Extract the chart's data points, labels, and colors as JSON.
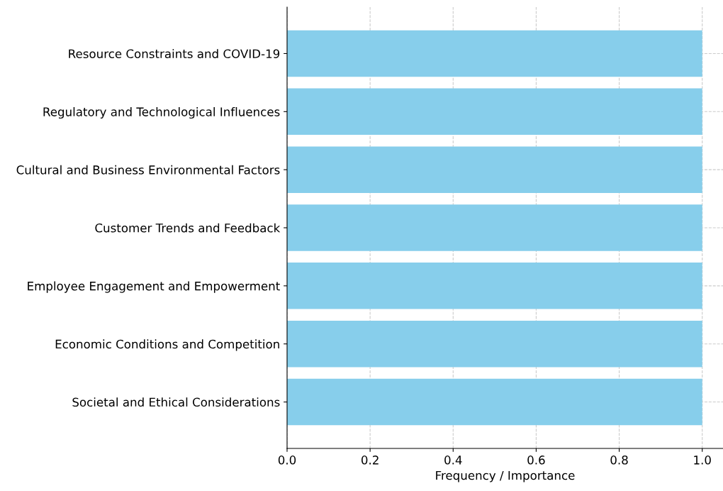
{
  "chart_data": {
    "type": "bar",
    "orientation": "horizontal",
    "xlabel": "Frequency / Importance",
    "categories": [
      "Resource Constraints and COVID-19",
      "Regulatory and Technological Influences",
      "Cultural and Business Environmental Factors",
      "Customer Trends and Feedback",
      "Employee Engagement and Empowerment",
      "Economic Conditions and Competition",
      "Societal and Ethical Considerations"
    ],
    "values": [
      1.0,
      1.0,
      1.0,
      1.0,
      1.0,
      1.0,
      1.0
    ],
    "color": "#87ceeb",
    "xlim": [
      0,
      1.05
    ],
    "xticks": [
      {
        "value": 0,
        "label": "0.0"
      },
      {
        "value": 0.2,
        "label": "0.2"
      },
      {
        "value": 0.4,
        "label": "0.4"
      },
      {
        "value": 0.6,
        "label": "0.6"
      },
      {
        "value": 0.8,
        "label": "0.8"
      },
      {
        "value": 1.0,
        "label": "1.0"
      }
    ],
    "grid": true,
    "line_style": "dashed"
  }
}
